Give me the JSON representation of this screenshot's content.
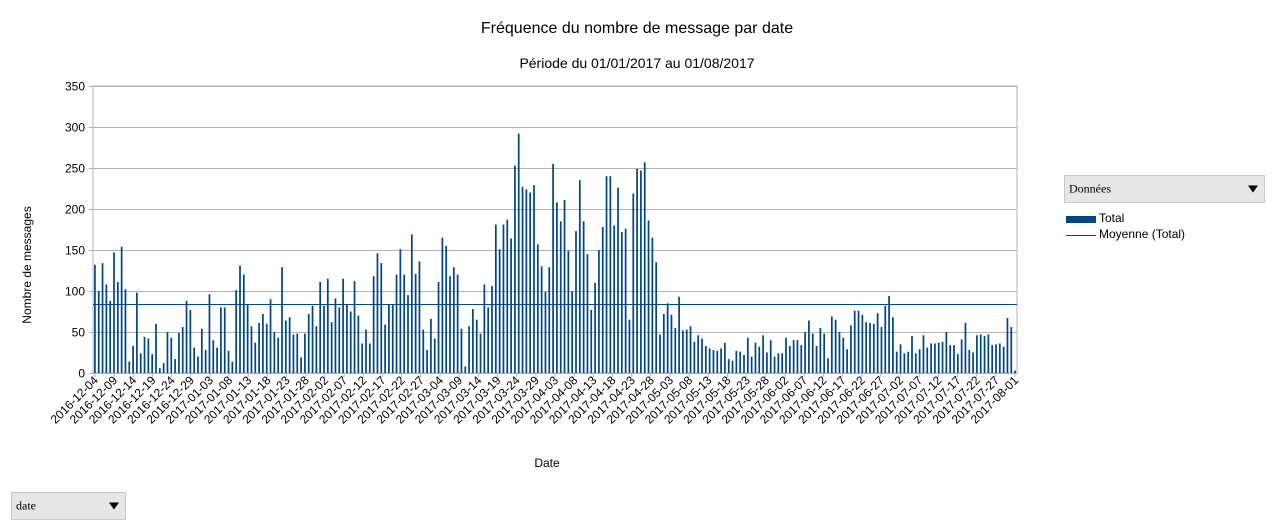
{
  "chart_data": {
    "type": "bar",
    "title": "Fréquence du nombre de message par date",
    "subtitle": "Période du 01/01/2017 au 01/08/2017",
    "xlabel": "Date",
    "ylabel": "Nombre de messages",
    "ylim": [
      0,
      350
    ],
    "yticks": [
      0,
      50,
      100,
      150,
      200,
      250,
      300,
      350
    ],
    "grid": true,
    "legend_position": "right",
    "x_tick_labels": [
      "2016-12-04",
      "2016-12-09",
      "2016-12-14",
      "2016-12-19",
      "2016-12-24",
      "2016-12-29",
      "2017-01-03",
      "2017-01-08",
      "2017-01-13",
      "2017-01-18",
      "2017-01-23",
      "2017-01-28",
      "2017-02-02",
      "2017-02-07",
      "2017-02-12",
      "2017-02-17",
      "2017-02-22",
      "2017-02-27",
      "2017-03-04",
      "2017-03-09",
      "2017-03-14",
      "2017-03-19",
      "2017-03-24",
      "2017-03-29",
      "2017-04-03",
      "2017-04-08",
      "2017-04-13",
      "2017-04-18",
      "2017-04-23",
      "2017-04-28",
      "2017-05-03",
      "2017-05-08",
      "2017-05-13",
      "2017-05-18",
      "2017-05-23",
      "2017-05-28",
      "2017-06-02",
      "2017-06-07",
      "2017-06-12",
      "2017-06-17",
      "2017-06-22",
      "2017-06-27",
      "2017-07-02",
      "2017-07-07",
      "2017-07-12",
      "2017-07-17",
      "2017-07-22",
      "2017-07-27",
      "2017-08-01"
    ],
    "x_start": "2016-12-04",
    "x_end": "2017-08-01",
    "series": [
      {
        "name": "Total",
        "color": "#004586",
        "values": [
          132,
          100,
          134,
          108,
          88,
          147,
          111,
          154,
          102,
          14,
          33,
          98,
          24,
          44,
          42,
          23,
          60,
          6,
          12,
          50,
          43,
          17,
          49,
          56,
          88,
          77,
          31,
          20,
          54,
          28,
          96,
          40,
          31,
          80,
          80,
          27,
          14,
          101,
          131,
          120,
          84,
          57,
          37,
          61,
          72,
          60,
          90,
          50,
          43,
          129,
          64,
          68,
          47,
          48,
          19,
          48,
          72,
          82,
          57,
          111,
          82,
          115,
          62,
          91,
          80,
          115,
          83,
          75,
          112,
          70,
          36,
          53,
          36,
          118,
          146,
          134,
          59,
          84,
          84,
          120,
          151,
          120,
          95,
          169,
          121,
          136,
          53,
          28,
          66,
          42,
          111,
          165,
          155,
          118,
          129,
          120,
          54,
          8,
          57,
          78,
          65,
          48,
          108,
          80,
          106,
          181,
          151,
          181,
          187,
          164,
          253,
          292,
          227,
          224,
          220,
          229,
          157,
          130,
          99,
          129,
          255,
          208,
          185,
          211,
          149,
          100,
          173,
          235,
          185,
          145,
          77,
          110,
          150,
          178,
          240,
          240,
          180,
          226,
          172,
          176,
          65,
          219,
          249,
          247,
          257,
          186,
          165,
          135,
          47,
          72,
          85,
          71,
          55,
          93,
          52,
          53,
          57,
          38,
          46,
          42,
          33,
          30,
          28,
          27,
          30,
          37,
          17,
          15,
          27,
          26,
          22,
          43,
          20,
          37,
          32,
          46,
          25,
          40,
          20,
          24,
          24,
          43,
          33,
          40,
          40,
          34,
          50,
          64,
          48,
          33,
          55,
          48,
          18,
          69,
          65,
          50,
          43,
          29,
          58,
          76,
          76,
          71,
          62,
          61,
          60,
          73,
          56,
          82,
          94,
          68,
          26,
          35,
          24,
          26,
          45,
          24,
          29,
          46,
          31,
          36,
          36,
          37,
          38,
          50,
          34,
          34,
          23,
          41,
          61,
          28,
          25,
          46,
          47,
          45,
          47,
          34,
          35,
          36,
          32,
          67,
          56,
          3
        ]
      },
      {
        "name": "Moyenne (Total)",
        "color": "#004586",
        "value": 83.6
      }
    ]
  },
  "controls": {
    "data_field_label": "Données",
    "row_field_label": "date"
  }
}
